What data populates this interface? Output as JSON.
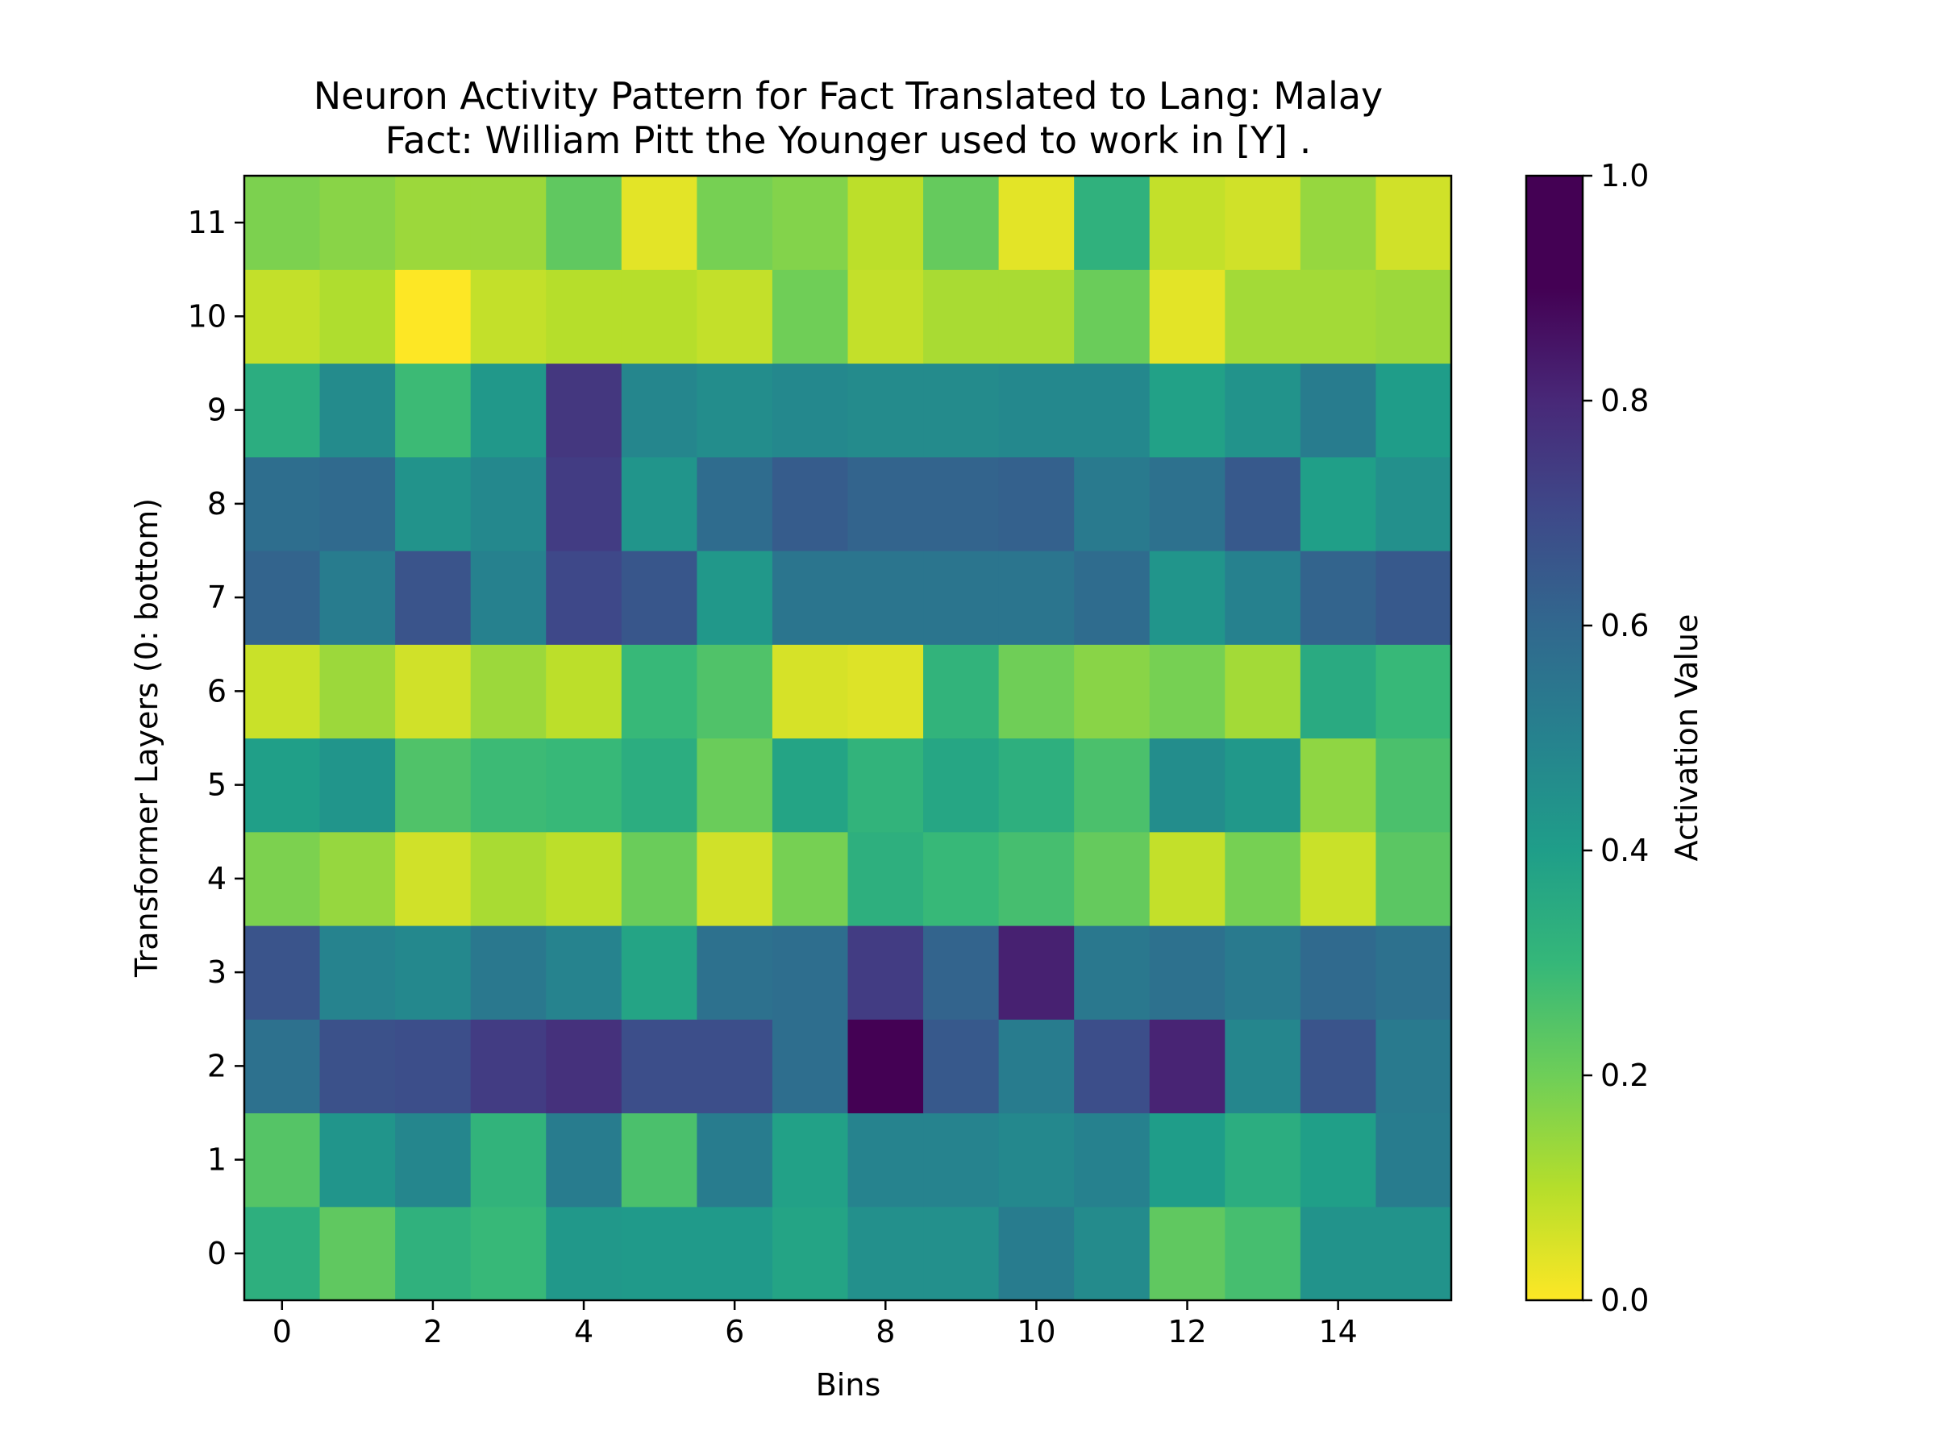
{
  "chart_data": {
    "type": "heatmap",
    "title": [
      "Neuron Activity Pattern for Fact Translated to Lang: Malay",
      "Fact: William Pitt the Younger used to work in [Y] ."
    ],
    "xlabel": "Bins",
    "ylabel": "Transformer Layers (0: bottom)",
    "x_ticks": [
      "0",
      "2",
      "4",
      "6",
      "8",
      "10",
      "12",
      "14"
    ],
    "y_ticks": [
      "0",
      "1",
      "2",
      "3",
      "4",
      "5",
      "6",
      "7",
      "8",
      "9",
      "10",
      "11"
    ],
    "n_bins": 16,
    "n_layers": 12,
    "colormap": "viridis_r",
    "colorbar": {
      "label": "Activation Value",
      "range": [
        0.0,
        1.0
      ],
      "ticks": [
        "0.0",
        "0.2",
        "0.4",
        "0.6",
        "0.8",
        "1.0"
      ]
    },
    "values": [
      [
        0.37,
        0.25,
        0.36,
        0.33,
        0.47,
        0.46,
        0.46,
        0.42,
        0.5,
        0.5,
        0.58,
        0.52,
        0.25,
        0.3,
        0.49,
        0.49
      ],
      [
        0.27,
        0.48,
        0.54,
        0.35,
        0.58,
        0.29,
        0.58,
        0.43,
        0.55,
        0.55,
        0.53,
        0.56,
        0.45,
        0.38,
        0.44,
        0.58
      ],
      [
        0.63,
        0.75,
        0.76,
        0.82,
        0.86,
        0.76,
        0.76,
        0.64,
        1.0,
        0.72,
        0.58,
        0.76,
        0.9,
        0.54,
        0.74,
        0.59
      ],
      [
        0.74,
        0.55,
        0.53,
        0.6,
        0.55,
        0.42,
        0.63,
        0.64,
        0.82,
        0.68,
        0.91,
        0.6,
        0.63,
        0.59,
        0.66,
        0.63
      ],
      [
        0.2,
        0.16,
        0.07,
        0.13,
        0.1,
        0.23,
        0.07,
        0.21,
        0.37,
        0.33,
        0.3,
        0.24,
        0.09,
        0.21,
        0.08,
        0.26
      ],
      [
        0.44,
        0.48,
        0.28,
        0.32,
        0.33,
        0.38,
        0.23,
        0.42,
        0.35,
        0.41,
        0.37,
        0.29,
        0.51,
        0.47,
        0.17,
        0.29
      ],
      [
        0.08,
        0.15,
        0.07,
        0.15,
        0.1,
        0.33,
        0.28,
        0.06,
        0.05,
        0.35,
        0.22,
        0.18,
        0.21,
        0.14,
        0.39,
        0.33
      ],
      [
        0.68,
        0.58,
        0.74,
        0.56,
        0.78,
        0.73,
        0.47,
        0.61,
        0.61,
        0.61,
        0.61,
        0.65,
        0.48,
        0.56,
        0.68,
        0.72
      ],
      [
        0.64,
        0.66,
        0.49,
        0.53,
        0.82,
        0.48,
        0.65,
        0.71,
        0.68,
        0.68,
        0.69,
        0.59,
        0.63,
        0.72,
        0.44,
        0.5
      ],
      [
        0.38,
        0.52,
        0.32,
        0.47,
        0.84,
        0.54,
        0.51,
        0.53,
        0.52,
        0.52,
        0.53,
        0.53,
        0.43,
        0.49,
        0.58,
        0.45
      ],
      [
        0.09,
        0.12,
        0.0,
        0.09,
        0.11,
        0.11,
        0.09,
        0.22,
        0.09,
        0.13,
        0.13,
        0.23,
        0.04,
        0.14,
        0.14,
        0.15
      ],
      [
        0.2,
        0.18,
        0.15,
        0.15,
        0.25,
        0.04,
        0.21,
        0.19,
        0.1,
        0.24,
        0.04,
        0.36,
        0.09,
        0.07,
        0.16,
        0.07
      ]
    ]
  }
}
